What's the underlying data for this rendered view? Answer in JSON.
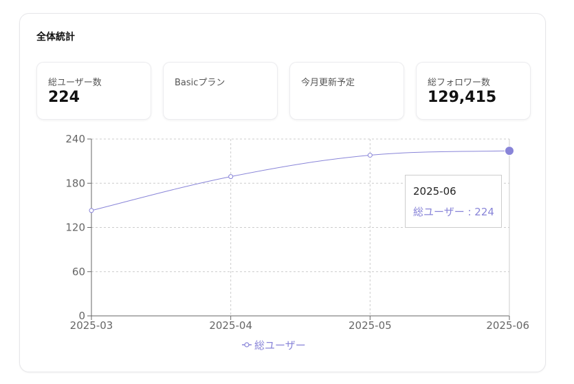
{
  "card": {
    "title": "全体統計"
  },
  "stats": [
    {
      "label": "総ユーザー数",
      "value": "224"
    },
    {
      "label": "Basicプラン",
      "value": ""
    },
    {
      "label": "今月更新予定",
      "value": ""
    },
    {
      "label": "総フォロワー数",
      "value": "129,415"
    }
  ],
  "chart_data": {
    "type": "line",
    "categories": [
      "2025-03",
      "2025-04",
      "2025-05",
      "2025-06"
    ],
    "series": [
      {
        "name": "総ユーザー",
        "values": [
          143,
          189,
          218,
          224
        ],
        "color": "#8884d8"
      }
    ],
    "ylim": [
      0,
      240
    ],
    "yticks": [
      "0",
      "60",
      "120",
      "180",
      "240"
    ],
    "grid": true,
    "legend": "bottom",
    "tooltip": {
      "label": "2025-06",
      "item": "総ユーザー : 224"
    }
  }
}
